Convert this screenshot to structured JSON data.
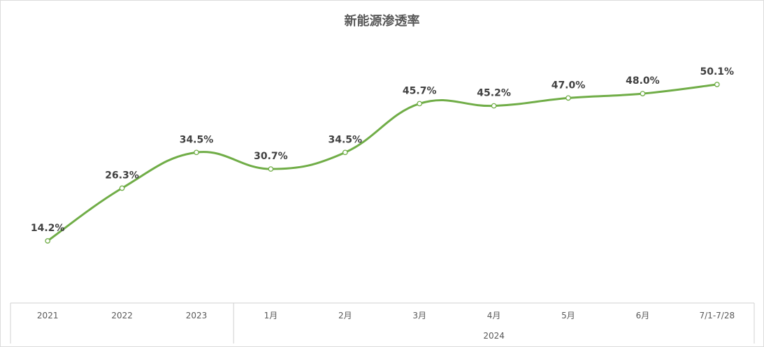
{
  "chart_data": {
    "type": "line",
    "title": "新能源渗透率",
    "categories": [
      "2021",
      "2022",
      "2023",
      "1月",
      "2月",
      "3月",
      "4月",
      "5月",
      "6月",
      "7/1-7/28"
    ],
    "category_groups": [
      {
        "label": "",
        "categories": [
          "2021",
          "2022",
          "2023"
        ]
      },
      {
        "label": "2024",
        "categories": [
          "1月",
          "2月",
          "3月",
          "4月",
          "5月",
          "6月",
          "7/1-7/28"
        ]
      }
    ],
    "series": [
      {
        "name": "",
        "values": [
          14.2,
          26.3,
          34.5,
          30.7,
          34.5,
          45.7,
          45.2,
          47.0,
          48.0,
          50.1
        ],
        "data_labels": [
          "14.2%",
          "26.3%",
          "34.5%",
          "30.7%",
          "34.5%",
          "45.7%",
          "45.2%",
          "47.0%",
          "48.0%",
          "50.1%"
        ]
      }
    ],
    "line_color": "#70ad47",
    "smooth": true,
    "marker": "hollow-circle",
    "grid": false,
    "legend": "none"
  }
}
